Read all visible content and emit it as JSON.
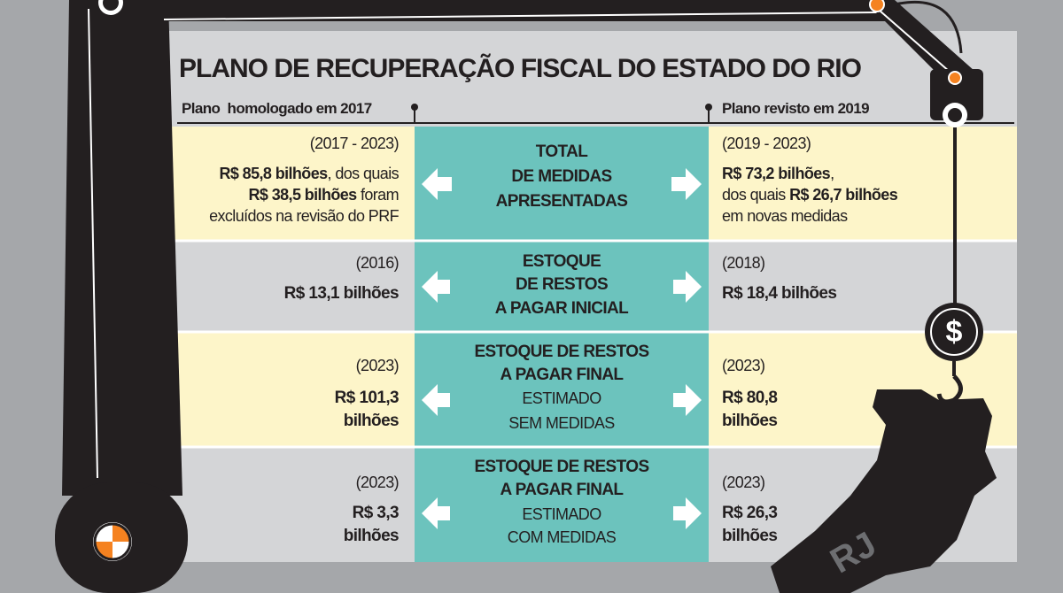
{
  "title": "PLANO DE RECUPERAÇÃO FISCAL DO ESTADO DO RIO",
  "left_header": "Plano  homologado em 2017",
  "right_header": "Plano revisto em 2019",
  "rows": [
    {
      "left": {
        "period": "(2017 - 2023)",
        "lines": [
          [
            "R$ 85,8 bilhões",
            ", dos quais"
          ],
          [
            "R$ 38,5 bilhões",
            " foram"
          ],
          [
            "excluídos na revisão do PRF"
          ]
        ]
      },
      "center": {
        "heading": [
          "TOTAL",
          "DE MEDIDAS",
          "APRESENTADAS"
        ],
        "detail": []
      },
      "right": {
        "period": "(2019 - 2023)",
        "lines": [
          [
            "R$ 73,2 bilhões",
            ","
          ],
          [
            "dos quais ",
            "R$ 26,7 bilhões"
          ],
          [
            "em novas medidas"
          ]
        ]
      }
    },
    {
      "left": {
        "period": "(2016)",
        "lines": [
          [
            "R$ 13,1 bilhões"
          ]
        ]
      },
      "center": {
        "heading": [
          "ESTOQUE",
          "DE RESTOS",
          "A PAGAR INICIAL"
        ],
        "detail": []
      },
      "right": {
        "period": "(2018)",
        "lines": [
          [
            "R$ 18,4 bilhões"
          ]
        ]
      }
    },
    {
      "left": {
        "period": "(2023)",
        "lines": [
          [
            "R$ 101,3"
          ],
          [
            "bilhões"
          ]
        ]
      },
      "center": {
        "heading": [
          "ESTOQUE DE RESTOS",
          "A PAGAR FINAL"
        ],
        "detail": [
          "ESTIMADO",
          "SEM MEDIDAS"
        ]
      },
      "right": {
        "period": "(2023)",
        "lines": [
          [
            "R$ 80,8"
          ],
          [
            "bilhões"
          ]
        ]
      }
    },
    {
      "left": {
        "period": "(2023)",
        "lines": [
          [
            "R$ 3,3"
          ],
          [
            "bilhões"
          ]
        ]
      },
      "center": {
        "heading": [
          "ESTOQUE DE RESTOS",
          "A PAGAR FINAL"
        ],
        "detail": [
          "ESTIMADO",
          "COM MEDIDAS"
        ]
      },
      "right": {
        "period": "(2023)",
        "lines": [
          [
            "R$ 26,3"
          ],
          [
            "bilhões"
          ]
        ]
      }
    }
  ],
  "symbol": "$",
  "map_label": "RJ"
}
